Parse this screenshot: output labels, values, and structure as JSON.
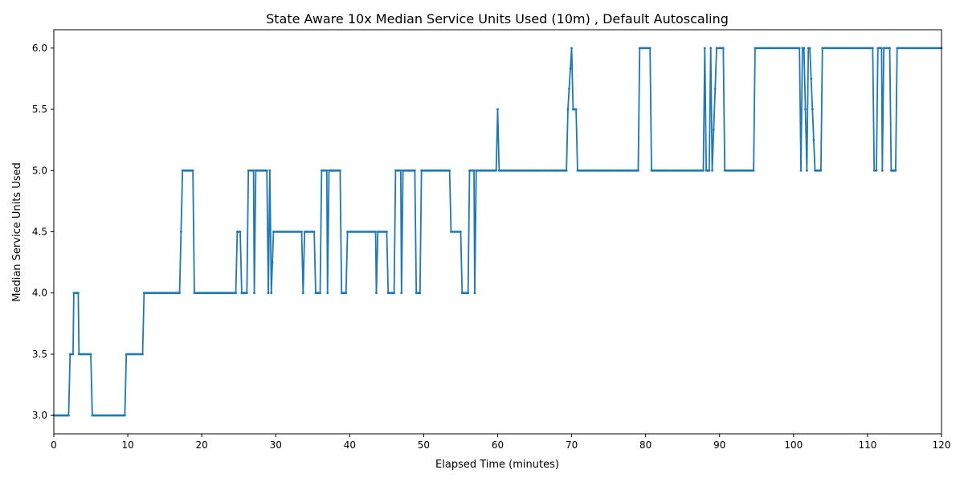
{
  "chart_data": {
    "type": "line",
    "title": "State Aware 10x Median Service Units Used (10m) , Default Autoscaling",
    "xlabel": "Elapsed Time (minutes)",
    "ylabel": "Median Service Units Used",
    "xlim": [
      0,
      120
    ],
    "ylim": [
      2.85,
      6.15
    ],
    "xticks": [
      0,
      10,
      20,
      30,
      40,
      50,
      60,
      70,
      80,
      90,
      100,
      110,
      120
    ],
    "yticks": [
      3.0,
      3.5,
      4.0,
      4.5,
      5.0,
      5.5,
      6.0
    ],
    "xtick_labels": [
      "0",
      "10",
      "20",
      "30",
      "40",
      "50",
      "60",
      "70",
      "80",
      "90",
      "100",
      "110",
      "120"
    ],
    "ytick_labels": [
      "3.0",
      "3.5",
      "4.0",
      "4.5",
      "5.0",
      "5.5",
      "6.0"
    ],
    "grid": false,
    "legend": "none",
    "color": "#1f77b4",
    "series": [
      {
        "x": [
          0,
          2.0,
          2.2,
          2.6,
          2.7,
          3.3,
          3.4,
          5.0,
          5.2,
          9.6,
          9.8,
          12.0,
          12.2,
          17.0,
          17.4,
          18.8,
          19.0,
          24.6,
          24.8,
          25.2,
          25.4,
          26.1,
          26.3,
          27.0,
          27.1,
          27.3,
          28.8,
          29.0,
          29.2,
          29.4,
          29.7,
          33.5,
          33.7,
          33.9,
          35.2,
          35.4,
          36.0,
          36.2,
          36.9,
          37.0,
          37.2,
          38.7,
          38.9,
          39.5,
          39.7,
          43.5,
          43.6,
          43.8,
          45.0,
          45.2,
          46.0,
          46.2,
          46.9,
          47.0,
          47.2,
          48.8,
          49.0,
          49.5,
          49.7,
          53.5,
          53.7,
          55.0,
          55.2,
          56.0,
          56.2,
          56.8,
          56.9,
          57.1,
          59.8,
          60.0,
          60.2,
          69.3,
          69.5,
          70.0,
          70.2,
          70.6,
          70.8,
          79.0,
          79.2,
          80.6,
          80.8,
          87.8,
          88.0,
          88.2,
          88.6,
          88.8,
          89.0,
          89.6,
          89.8,
          90.5,
          90.7,
          94.6,
          94.8,
          100.8,
          101.0,
          101.2,
          101.4,
          101.8,
          102.0,
          102.2,
          102.9,
          103.1,
          103.7,
          103.9,
          110.7,
          110.9,
          111.2,
          111.4,
          111.9,
          112.0,
          112.2,
          113.0,
          113.2,
          113.8,
          114.0,
          120.0
        ],
        "y": [
          3.0,
          3.0,
          3.5,
          3.5,
          4.0,
          4.0,
          3.5,
          3.5,
          3.0,
          3.0,
          3.5,
          3.5,
          4.0,
          4.0,
          5.0,
          5.0,
          4.0,
          4.0,
          4.5,
          4.5,
          4.0,
          4.0,
          5.0,
          5.0,
          4.0,
          5.0,
          5.0,
          4.0,
          5.0,
          4.0,
          4.5,
          4.5,
          4.0,
          4.5,
          4.5,
          4.0,
          4.0,
          5.0,
          5.0,
          4.0,
          5.0,
          5.0,
          4.0,
          4.0,
          4.5,
          4.5,
          4.0,
          4.5,
          4.5,
          4.0,
          4.0,
          5.0,
          5.0,
          4.0,
          5.0,
          5.0,
          4.0,
          4.0,
          5.0,
          5.0,
          4.5,
          4.5,
          4.0,
          4.0,
          5.0,
          5.0,
          4.0,
          5.0,
          5.0,
          5.5,
          5.0,
          5.0,
          5.5,
          6.0,
          5.5,
          5.5,
          5.0,
          5.0,
          6.0,
          6.0,
          5.0,
          5.0,
          6.0,
          5.0,
          5.0,
          6.0,
          5.0,
          6.0,
          6.0,
          6.0,
          5.0,
          5.0,
          6.0,
          6.0,
          5.0,
          6.0,
          6.0,
          5.0,
          6.0,
          6.0,
          5.0,
          5.0,
          5.0,
          6.0,
          6.0,
          5.0,
          5.0,
          6.0,
          6.0,
          5.0,
          6.0,
          6.0,
          5.0,
          5.0,
          6.0,
          6.0
        ]
      }
    ]
  }
}
